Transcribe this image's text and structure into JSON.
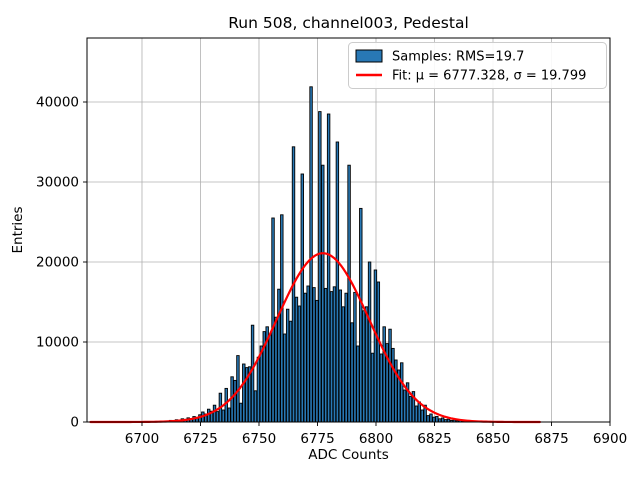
{
  "chart_data": {
    "type": "bar",
    "title": "Run 508, channel003, Pedestal",
    "xlabel": "ADC Counts",
    "ylabel": "Entries",
    "xlim": [
      6676.5,
      6900
    ],
    "ylim": [
      0,
      48000
    ],
    "xticks": [
      6700,
      6725,
      6750,
      6775,
      6800,
      6825,
      6850,
      6875,
      6900
    ],
    "yticks": [
      0,
      10000,
      20000,
      30000,
      40000
    ],
    "grid": true,
    "grid_color": "#b0b0b0",
    "bar_color": "#2878b5",
    "bar_edge_color": "#000000",
    "legend": {
      "position": "upper right",
      "entries": [
        {
          "type": "patch",
          "color": "#2878b5",
          "label": "Samples: RMS=19.7"
        },
        {
          "type": "line",
          "color": "#ff0000",
          "label": "Fit: μ = 6777.328, σ = 19.799"
        }
      ]
    },
    "fit": {
      "mu": 6777.328,
      "sigma": 19.799,
      "amplitude": 21100,
      "x_range": [
        6678,
        6870
      ],
      "color": "#ff0000"
    },
    "bins_start": 6711.0,
    "bin_step": 1.25,
    "heights": [
      120,
      200,
      150,
      280,
      220,
      400,
      330,
      520,
      430,
      680,
      580,
      900,
      1250,
      1000,
      1600,
      1350,
      2100,
      1300,
      3600,
      1500,
      4200,
      1750,
      5650,
      5200,
      8300,
      2350,
      7250,
      6800,
      6900,
      12100,
      3900,
      8100,
      9500,
      11300,
      11900,
      10900,
      25500,
      13100,
      16600,
      25900,
      11000,
      14100,
      12600,
      34400,
      15600,
      14500,
      31000,
      16100,
      17000,
      41900,
      16800,
      15200,
      38800,
      32100,
      16700,
      38500,
      16300,
      16900,
      35000,
      16500,
      14400,
      16100,
      32100,
      12400,
      16200,
      9500,
      26700,
      13900,
      14400,
      20000,
      8600,
      19000,
      17500,
      8500,
      11900,
      9800,
      11600,
      9200,
      7750,
      6500,
      7400,
      4000,
      4900,
      3200,
      3800,
      2000,
      2500,
      1500,
      2100,
      800,
      1000,
      600,
      700,
      400,
      500,
      300,
      350,
      200,
      250,
      150,
      180,
      120,
      140,
      90,
      100,
      70,
      80,
      50,
      40
    ]
  }
}
